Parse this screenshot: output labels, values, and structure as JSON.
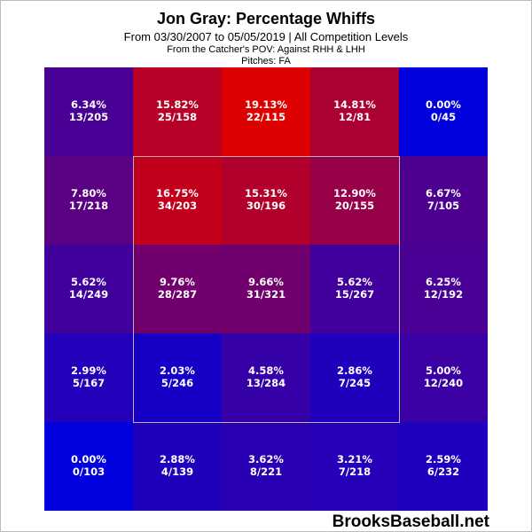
{
  "header": {
    "title": "Jon Gray: Percentage Whiffs",
    "subtitle": "From 03/30/2007 to 05/05/2019 | All Competition Levels",
    "pov_note": "From the Catcher's POV:   Against RHH & LHH",
    "pitches_note": "Pitches:  FA"
  },
  "watermark": "BrooksBaseball.net",
  "colors": {
    "low": "#0000dd",
    "high": "#dd0000",
    "zone_border": "#b4b4b4"
  },
  "chart_data": {
    "type": "heatmap",
    "rows": 5,
    "cols": 5,
    "strike_zone": {
      "rows": [
        1,
        3
      ],
      "cols": [
        1,
        3
      ]
    },
    "value_range": [
      0,
      19.13
    ],
    "cells": [
      [
        {
          "pct": 6.34,
          "label": "6.34%",
          "ratio": "13/205"
        },
        {
          "pct": 15.82,
          "label": "15.82%",
          "ratio": "25/158"
        },
        {
          "pct": 19.13,
          "label": "19.13%",
          "ratio": "22/115"
        },
        {
          "pct": 14.81,
          "label": "14.81%",
          "ratio": "12/81"
        },
        {
          "pct": 0.0,
          "label": "0.00%",
          "ratio": "0/45"
        }
      ],
      [
        {
          "pct": 7.8,
          "label": "7.80%",
          "ratio": "17/218"
        },
        {
          "pct": 16.75,
          "label": "16.75%",
          "ratio": "34/203"
        },
        {
          "pct": 15.31,
          "label": "15.31%",
          "ratio": "30/196"
        },
        {
          "pct": 12.9,
          "label": "12.90%",
          "ratio": "20/155"
        },
        {
          "pct": 6.67,
          "label": "6.67%",
          "ratio": "7/105"
        }
      ],
      [
        {
          "pct": 5.62,
          "label": "5.62%",
          "ratio": "14/249"
        },
        {
          "pct": 9.76,
          "label": "9.76%",
          "ratio": "28/287"
        },
        {
          "pct": 9.66,
          "label": "9.66%",
          "ratio": "31/321"
        },
        {
          "pct": 5.62,
          "label": "5.62%",
          "ratio": "15/267"
        },
        {
          "pct": 6.25,
          "label": "6.25%",
          "ratio": "12/192"
        }
      ],
      [
        {
          "pct": 2.99,
          "label": "2.99%",
          "ratio": "5/167"
        },
        {
          "pct": 2.03,
          "label": "2.03%",
          "ratio": "5/246"
        },
        {
          "pct": 4.58,
          "label": "4.58%",
          "ratio": "13/284"
        },
        {
          "pct": 2.86,
          "label": "2.86%",
          "ratio": "7/245"
        },
        {
          "pct": 5.0,
          "label": "5.00%",
          "ratio": "12/240"
        }
      ],
      [
        {
          "pct": 0.0,
          "label": "0.00%",
          "ratio": "0/103"
        },
        {
          "pct": 2.88,
          "label": "2.88%",
          "ratio": "4/139"
        },
        {
          "pct": 3.62,
          "label": "3.62%",
          "ratio": "8/221"
        },
        {
          "pct": 3.21,
          "label": "3.21%",
          "ratio": "7/218"
        },
        {
          "pct": 2.59,
          "label": "2.59%",
          "ratio": "6/232"
        }
      ]
    ]
  }
}
